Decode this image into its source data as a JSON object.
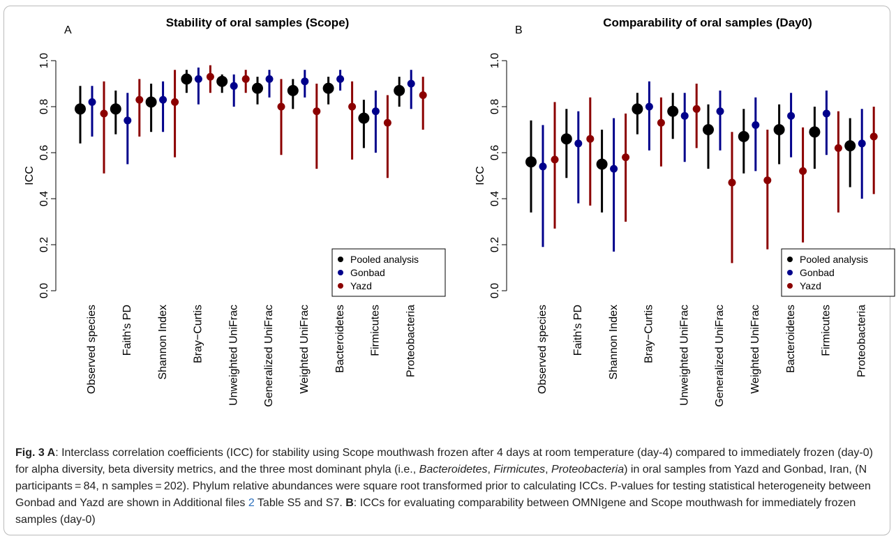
{
  "chart_data": [
    {
      "type": "dot_errorbar",
      "panel_label": "A",
      "title": "Stability of oral samples (Scope)",
      "y_label": "ICC",
      "categories": [
        "Observed species",
        "Faith's PD",
        "Shannon Index",
        "Bray−Curtis",
        "Unweighted UniFrac",
        "Generalized UniFrac",
        "Weighted UniFrac",
        "Bacteroidetes",
        "Firmicutes",
        "Proteobacteria"
      ],
      "ylim": [
        0,
        1
      ],
      "yticks": [
        {
          "value": 0,
          "label": "0.0"
        },
        0.2,
        0.4,
        0.6,
        0.8,
        {
          "value": 1,
          "label": "1.0"
        }
      ],
      "legend": "bottom-right",
      "series": [
        {
          "name": "Pooled analysis",
          "color": "#000000",
          "values": [
            0.79,
            0.79,
            0.82,
            0.92,
            0.91,
            0.88,
            0.87,
            0.88,
            0.75,
            0.87
          ],
          "lower": [
            0.64,
            0.68,
            0.69,
            0.86,
            0.86,
            0.81,
            0.79,
            0.81,
            0.62,
            0.8
          ],
          "upper": [
            0.89,
            0.87,
            0.9,
            0.96,
            0.94,
            0.93,
            0.92,
            0.93,
            0.83,
            0.93
          ]
        },
        {
          "name": "Gonbad",
          "color": "#00008b",
          "values": [
            0.82,
            0.74,
            0.83,
            0.92,
            0.89,
            0.92,
            0.91,
            0.92,
            0.78,
            0.9
          ],
          "lower": [
            0.67,
            0.55,
            0.69,
            0.81,
            0.8,
            0.84,
            0.84,
            0.87,
            0.6,
            0.79
          ],
          "upper": [
            0.89,
            0.86,
            0.91,
            0.97,
            0.94,
            0.96,
            0.96,
            0.96,
            0.87,
            0.96
          ]
        },
        {
          "name": "Yazd",
          "color": "#8b0000",
          "values": [
            0.77,
            0.83,
            0.82,
            0.93,
            0.92,
            0.8,
            0.78,
            0.8,
            0.73,
            0.85
          ],
          "lower": [
            0.51,
            0.67,
            0.58,
            0.86,
            0.86,
            0.59,
            0.53,
            0.57,
            0.49,
            0.7
          ],
          "upper": [
            0.91,
            0.92,
            0.96,
            0.98,
            0.96,
            0.92,
            0.9,
            0.91,
            0.85,
            0.93
          ]
        }
      ]
    },
    {
      "type": "dot_errorbar",
      "panel_label": "B",
      "title": "Comparability of oral samples (Day0)",
      "y_label": "ICC",
      "categories": [
        "Observed species",
        "Faith's PD",
        "Shannon Index",
        "Bray−Curtis",
        "Unweighted UniFrac",
        "Generalized UniFrac",
        "Weighted UniFrac",
        "Bacteroidetes",
        "Firmicutes",
        "Proteobacteria"
      ],
      "ylim": [
        0,
        1
      ],
      "yticks": [
        {
          "value": 0,
          "label": "0.0"
        },
        0.2,
        0.4,
        0.6,
        0.8,
        {
          "value": 1,
          "label": "1.0"
        }
      ],
      "legend": "bottom-right",
      "series": [
        {
          "name": "Pooled analysis",
          "color": "#000000",
          "values": [
            0.56,
            0.66,
            0.55,
            0.79,
            0.78,
            0.7,
            0.67,
            0.7,
            0.69,
            0.63
          ],
          "lower": [
            0.34,
            0.49,
            0.34,
            0.68,
            0.66,
            0.53,
            0.51,
            0.55,
            0.53,
            0.45
          ],
          "upper": [
            0.74,
            0.79,
            0.7,
            0.86,
            0.86,
            0.81,
            0.79,
            0.81,
            0.8,
            0.75
          ]
        },
        {
          "name": "Gonbad",
          "color": "#00008b",
          "values": [
            0.54,
            0.64,
            0.53,
            0.8,
            0.76,
            0.78,
            0.72,
            0.76,
            0.77,
            0.64
          ],
          "lower": [
            0.19,
            0.38,
            0.17,
            0.61,
            0.56,
            0.61,
            0.52,
            0.58,
            0.59,
            0.4
          ],
          "upper": [
            0.72,
            0.78,
            0.75,
            0.91,
            0.86,
            0.87,
            0.84,
            0.86,
            0.87,
            0.79
          ]
        },
        {
          "name": "Yazd",
          "color": "#8b0000",
          "values": [
            0.57,
            0.66,
            0.58,
            0.73,
            0.79,
            0.47,
            0.48,
            0.52,
            0.62,
            0.67
          ],
          "lower": [
            0.27,
            0.37,
            0.3,
            0.54,
            0.62,
            0.12,
            0.18,
            0.21,
            0.34,
            0.42
          ],
          "upper": [
            0.82,
            0.84,
            0.77,
            0.84,
            0.9,
            0.69,
            0.7,
            0.71,
            0.78,
            0.8
          ]
        }
      ]
    }
  ],
  "caption": {
    "runs": [
      "Fig. 3",
      " A",
      ": Interclass correlation coefficients (ICC) for stability using Scope mouthwash frozen after 4 days at room temperature (day-4) compared to immediately frozen (day-0) for alpha diversity, beta diversity metrics, and the three most dominant phyla (i.e., ",
      "Bacteroidetes",
      ", ",
      "Firmicutes",
      ", ",
      "Proteobacteria",
      ") in oral samples from Yazd and Gonbad, Iran, (N participants = 84, n samples = 202). Phylum relative abundances were square root transformed prior to calculating ICCs. P-values for testing statistical heterogeneity between Gonbad and Yazd are shown in Additional files ",
      "2",
      " Table S5 and S7. ",
      "B",
      ": ICCs for evaluating comparability between OMNIgene and Scope mouthwash for immediately frozen samples (day-0)"
    ]
  }
}
